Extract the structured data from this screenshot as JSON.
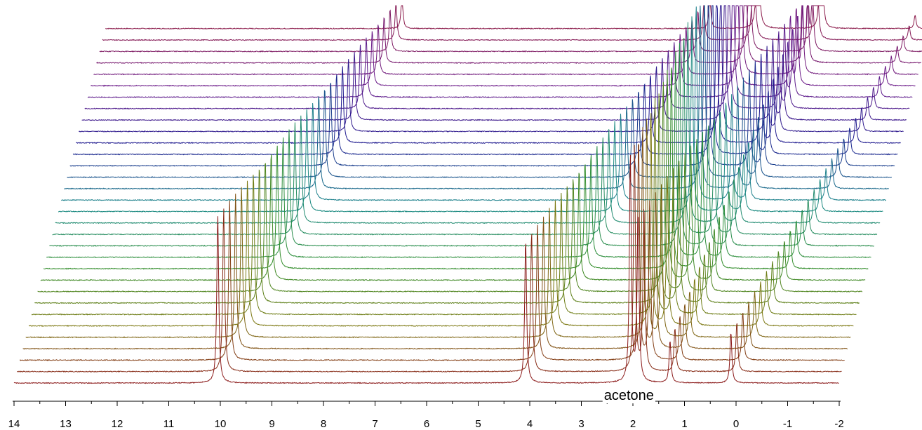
{
  "chart_data": {
    "type": "line",
    "title": "",
    "xlabel": "",
    "ylabel": "",
    "x_axis_reversed": true,
    "xlim": [
      14,
      -2
    ],
    "x_ticks": [
      14,
      13,
      12,
      11,
      10,
      9,
      8,
      7,
      6,
      5,
      4,
      3,
      2,
      1,
      0,
      -1,
      -2
    ],
    "x_tick_labels": [
      "14",
      "13",
      "12",
      "11",
      "10",
      "9",
      "8",
      "7",
      "6",
      "5",
      "4",
      "3",
      "2",
      "1",
      "0",
      "-1",
      "-2"
    ],
    "stacked_waterfall": true,
    "spectrum_count": 32,
    "color_gradient": [
      "#8b1a1a",
      "#7a7a10",
      "#2f8f2f",
      "#1a8a8a",
      "#1a1a8f",
      "#6a1a8a",
      "#8b1a4a"
    ],
    "peak_tracks": [
      {
        "name": "",
        "start_ppm": 10.05,
        "end_ppm": 8.25,
        "start_height": 1.0,
        "end_height": 0.2
      },
      {
        "name": "",
        "start_ppm": 4.08,
        "end_ppm": 2.28,
        "start_height": 0.85,
        "end_height": 0.2
      },
      {
        "name": "",
        "start_ppm": 2.05,
        "end_ppm": 1.35,
        "start_height": 1.35,
        "end_height": 1.0
      },
      {
        "name": "",
        "start_ppm": 1.9,
        "end_ppm": 0.15,
        "start_height": 1.0,
        "end_height": 0.3
      },
      {
        "name": "",
        "start_ppm": 1.28,
        "end_ppm": 0.1,
        "start_height": 0.25,
        "end_height": 0.45
      },
      {
        "name": "",
        "start_ppm": 0.1,
        "end_ppm": -1.7,
        "start_height": 0.3,
        "end_height": 0.08
      }
    ],
    "annotations": [
      {
        "text": "acetone",
        "ppm": 2.05
      }
    ]
  }
}
